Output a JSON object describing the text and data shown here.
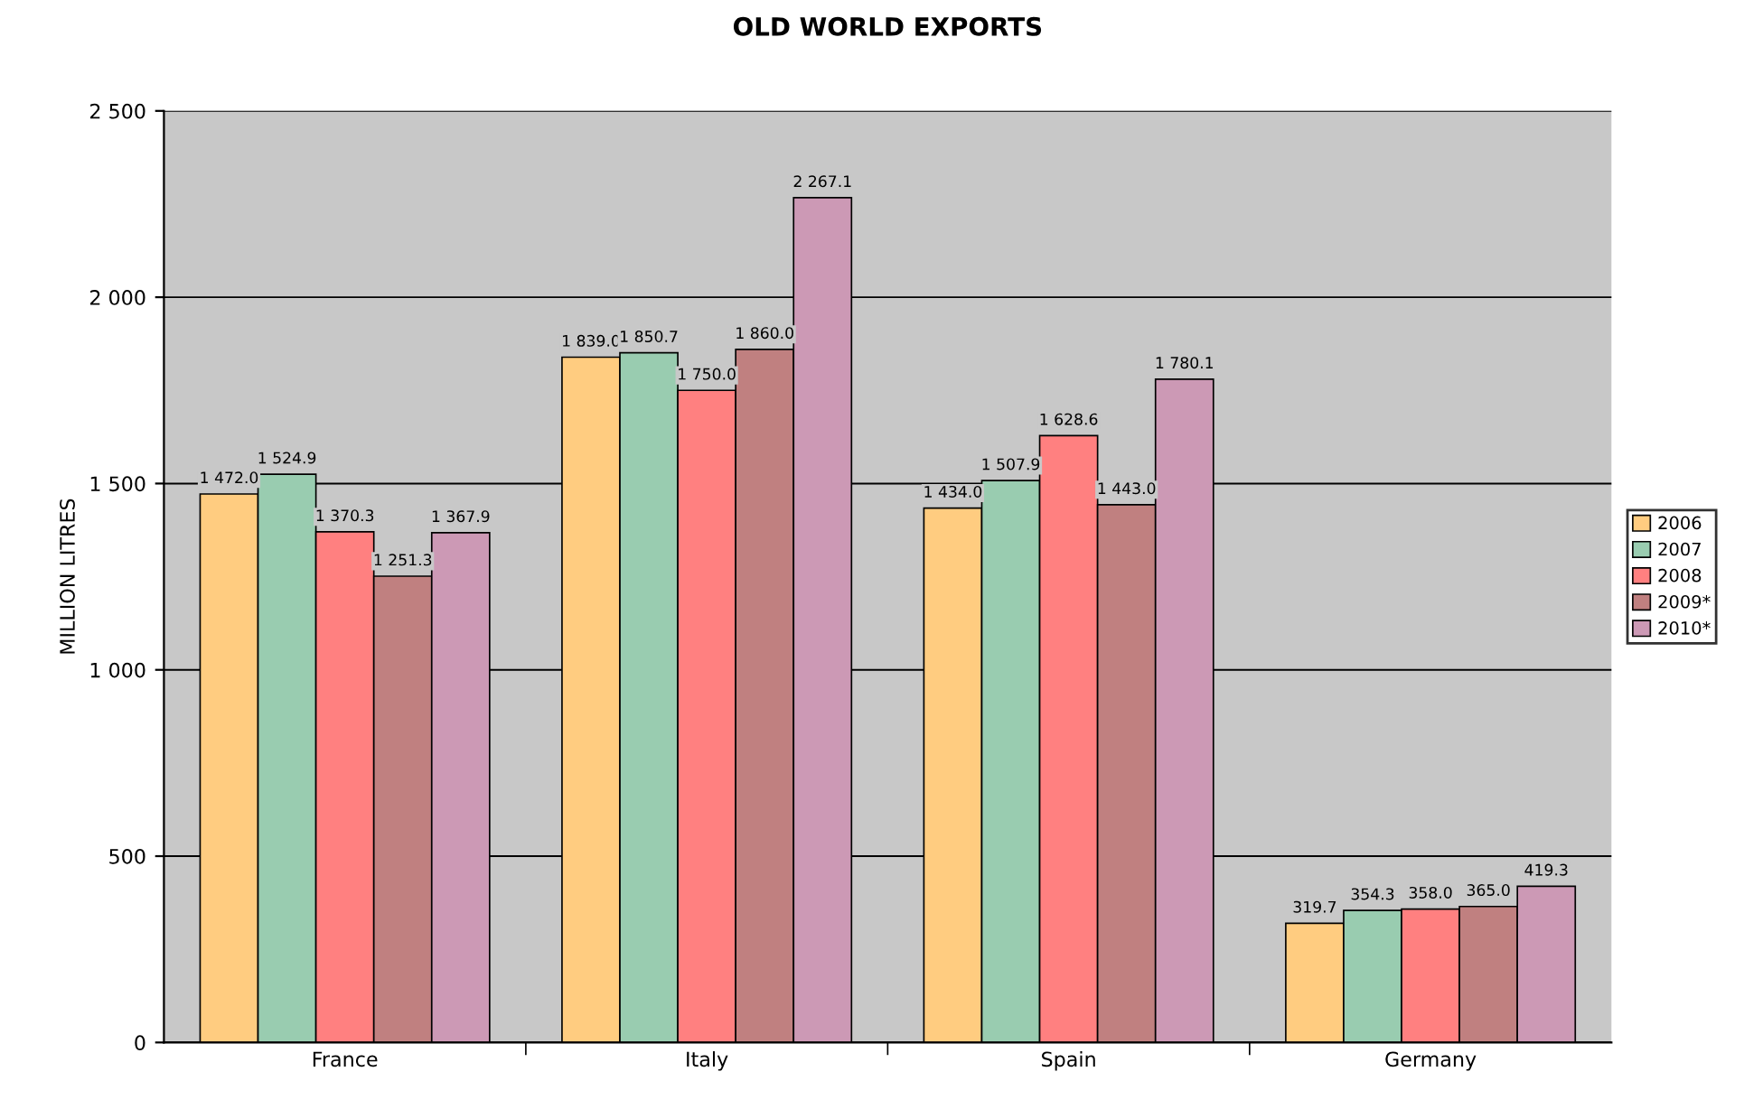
{
  "chart_data": {
    "type": "bar",
    "title": "OLD WORLD EXPORTS",
    "ylabel": "MILLION LITRES",
    "categories": [
      "France",
      "Italy",
      "Spain",
      "Germany"
    ],
    "series": [
      {
        "name": "2006",
        "color": "#ffcc80",
        "values": [
          1472.0,
          1839.0,
          1434.0,
          319.7
        ],
        "value_labels": [
          "1 472.0",
          "1 839.0",
          "1 434.0",
          "319.7"
        ]
      },
      {
        "name": "2007",
        "color": "#99ccb0",
        "values": [
          1524.9,
          1850.7,
          1507.9,
          354.3
        ],
        "value_labels": [
          "1 524.9",
          "1 850.7",
          "1 507.9",
          "354.3"
        ]
      },
      {
        "name": "2008",
        "color": "#ff8080",
        "values": [
          1370.3,
          1750.0,
          1628.6,
          358.0
        ],
        "value_labels": [
          "1 370.3",
          "1 750.0",
          "1 628.6",
          "358.0"
        ]
      },
      {
        "name": "2009*",
        "color": "#c08080",
        "values": [
          1251.3,
          1860.0,
          1443.0,
          365.0
        ],
        "value_labels": [
          "1 251.3",
          "1 860.0",
          "1 443.0",
          "365.0"
        ]
      },
      {
        "name": "2010*",
        "color": "#cc99b5",
        "values": [
          1367.9,
          2267.1,
          1780.1,
          419.3
        ],
        "value_labels": [
          "1 367.9",
          "2 267.1",
          "1 780.1",
          "419.3"
        ]
      }
    ],
    "ylim": [
      0,
      2500
    ],
    "yticks": [
      0,
      {
        "value": 500,
        "label": "500"
      },
      {
        "value": 1000,
        "label": "1 000"
      },
      {
        "value": 1500,
        "label": "1 500"
      },
      {
        "value": 2000,
        "label": "2 000"
      },
      {
        "value": 2500,
        "label": "2 500"
      }
    ],
    "grid": "y",
    "legend": "right"
  }
}
